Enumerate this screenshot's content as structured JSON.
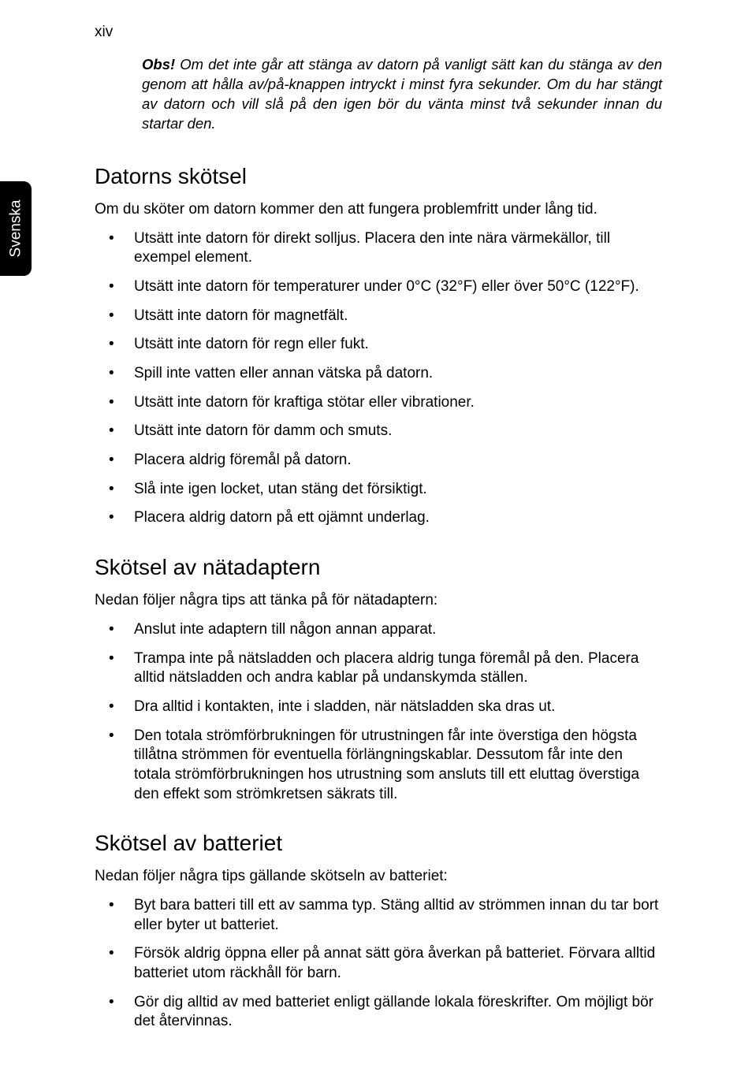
{
  "page": {
    "number": "xiv",
    "side_tab": "Svenska"
  },
  "note": {
    "label": "Obs!",
    "text": " Om det inte går att stänga av datorn på vanligt sätt kan du stänga av den genom att hålla av/på-knappen intryckt i minst fyra sekunder. Om du har stängt av datorn och vill slå på den igen bör du vänta minst två sekunder innan du startar den."
  },
  "sections": {
    "s1": {
      "heading": "Datorns skötsel",
      "intro": "Om du sköter om datorn kommer den att fungera problemfritt under lång tid.",
      "items": [
        "Utsätt inte datorn för direkt solljus. Placera den inte nära värmekällor, till exempel element.",
        "Utsätt inte datorn för temperaturer under 0°C (32°F) eller över 50°C (122°F).",
        "Utsätt inte datorn för magnetfält.",
        "Utsätt inte datorn för regn eller fukt.",
        "Spill inte vatten eller annan vätska på datorn.",
        "Utsätt inte datorn för kraftiga stötar eller vibrationer.",
        "Utsätt inte datorn för damm och smuts.",
        "Placera aldrig föremål på datorn.",
        "Slå inte igen locket, utan stäng det försiktigt.",
        "Placera aldrig datorn på ett ojämnt underlag."
      ]
    },
    "s2": {
      "heading": "Skötsel av nätadaptern",
      "intro": "Nedan följer några tips att tänka på för nätadaptern:",
      "items": [
        "Anslut inte adaptern till någon annan apparat.",
        "Trampa inte på nätsladden och placera aldrig tunga föremål på den. Placera alltid nätsladden och andra kablar på undanskymda ställen.",
        "Dra alltid i kontakten, inte i sladden, när nätsladden ska dras ut.",
        "Den totala strömförbrukningen för utrustningen får inte överstiga den högsta tillåtna strömmen för eventuella förlängningskablar. Dessutom får inte den totala strömförbrukningen hos utrustning som ansluts till ett eluttag överstiga den effekt som strömkretsen säkrats till."
      ]
    },
    "s3": {
      "heading": "Skötsel av batteriet",
      "intro": "Nedan följer några tips gällande skötseln av batteriet:",
      "items": [
        "Byt bara batteri till ett av samma typ. Stäng alltid av strömmen innan du tar bort eller byter ut batteriet.",
        "Försök aldrig öppna eller på annat sätt göra åverkan på batteriet. Förvara alltid batteriet utom räckhåll för barn.",
        "Gör dig alltid av med batteriet enligt gällande lokala föreskrifter. Om möjligt bör det återvinnas."
      ]
    }
  },
  "style": {
    "bg": "#ffffff",
    "text": "#000000",
    "tab_bg": "#000000",
    "tab_text": "#ffffff",
    "body_fontsize": 19,
    "heading_fontsize": 28
  }
}
